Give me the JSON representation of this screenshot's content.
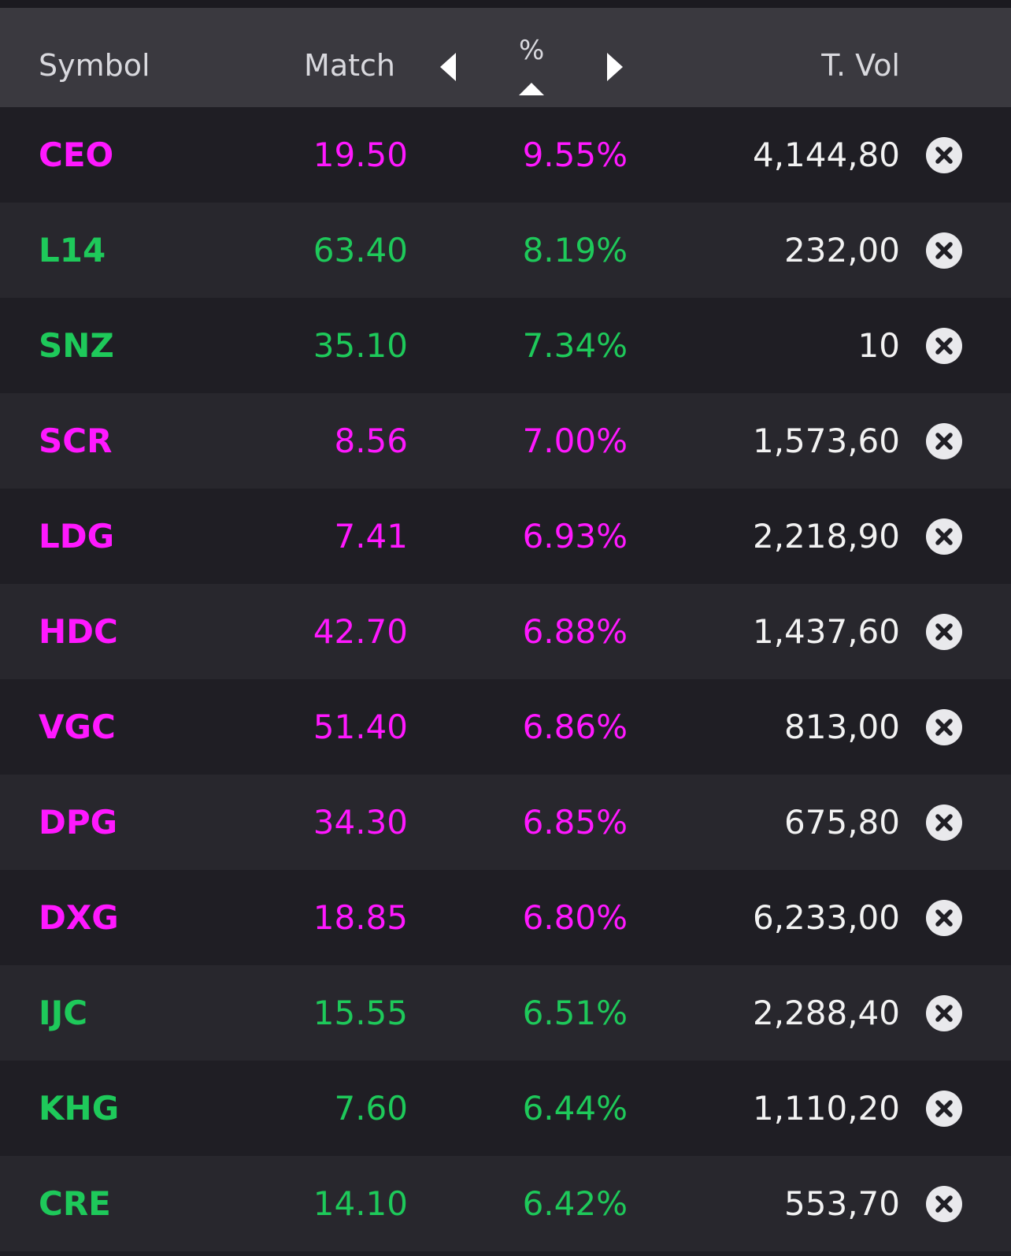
{
  "header": {
    "symbol": "Symbol",
    "match": "Match",
    "percent": "%",
    "total_volume": "T. Vol"
  },
  "colors": {
    "up_magenta": "#ff18ff",
    "up_green": "#1ec95a",
    "volume_text": "#f2f2f2",
    "header_bg": "#3a393f",
    "row_bg_dark": "#1f1e24",
    "row_bg_band": "#28272d"
  },
  "icons": {
    "prev": "caret-left-icon",
    "next": "caret-right-icon",
    "sort": "sort-ascending-icon",
    "remove": "close-circle-icon"
  },
  "rows": [
    {
      "symbol": "CEO",
      "match": "19.50",
      "percent": "9.55%",
      "volume": "4,144,80",
      "color": "#ff18ff"
    },
    {
      "symbol": "L14",
      "match": "63.40",
      "percent": "8.19%",
      "volume": "232,00",
      "color": "#1ec95a"
    },
    {
      "symbol": "SNZ",
      "match": "35.10",
      "percent": "7.34%",
      "volume": "10",
      "color": "#1ec95a"
    },
    {
      "symbol": "SCR",
      "match": "8.56",
      "percent": "7.00%",
      "volume": "1,573,60",
      "color": "#ff18ff"
    },
    {
      "symbol": "LDG",
      "match": "7.41",
      "percent": "6.93%",
      "volume": "2,218,90",
      "color": "#ff18ff"
    },
    {
      "symbol": "HDC",
      "match": "42.70",
      "percent": "6.88%",
      "volume": "1,437,60",
      "color": "#ff18ff"
    },
    {
      "symbol": "VGC",
      "match": "51.40",
      "percent": "6.86%",
      "volume": "813,00",
      "color": "#ff18ff"
    },
    {
      "symbol": "DPG",
      "match": "34.30",
      "percent": "6.85%",
      "volume": "675,80",
      "color": "#ff18ff"
    },
    {
      "symbol": "DXG",
      "match": "18.85",
      "percent": "6.80%",
      "volume": "6,233,00",
      "color": "#ff18ff"
    },
    {
      "symbol": "IJC",
      "match": "15.55",
      "percent": "6.51%",
      "volume": "2,288,40",
      "color": "#1ec95a"
    },
    {
      "symbol": "KHG",
      "match": "7.60",
      "percent": "6.44%",
      "volume": "1,110,20",
      "color": "#1ec95a"
    },
    {
      "symbol": "CRE",
      "match": "14.10",
      "percent": "6.42%",
      "volume": "553,70",
      "color": "#1ec95a"
    }
  ]
}
